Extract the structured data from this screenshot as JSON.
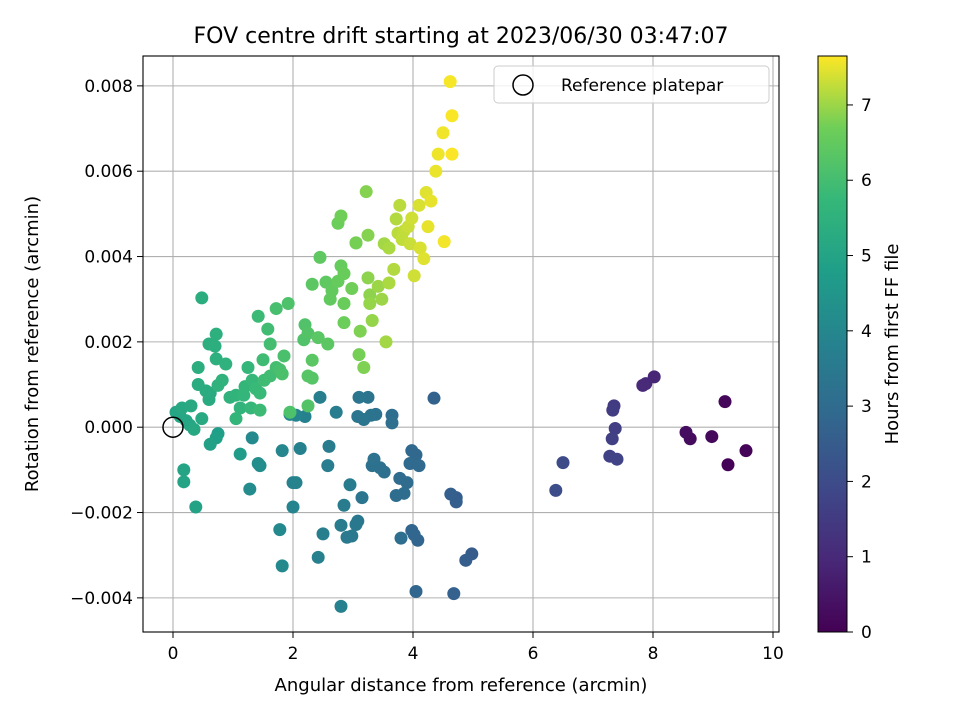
{
  "chart_data": {
    "type": "scatter",
    "title": "FOV centre drift starting at 2023/06/30 03:47:07",
    "xlabel": "Angular distance from reference (arcmin)",
    "ylabel": "Rotation from reference (arcmin)",
    "colorbar_label": "Hours from first FF file",
    "colormap": "viridis",
    "xlim": [
      -0.5,
      10.1
    ],
    "ylim": [
      -0.0048,
      0.0087
    ],
    "clim": [
      0,
      7.65
    ],
    "grid": true,
    "legend_position": "top-right",
    "x_ticks": [
      "0",
      "2",
      "4",
      "6",
      "8",
      "10"
    ],
    "y_ticks": [
      "−0.004",
      "−0.002",
      "0.000",
      "0.002",
      "0.004",
      "0.006",
      "0.008"
    ],
    "colorbar_ticks": [
      "0",
      "1",
      "2",
      "3",
      "4",
      "5",
      "6",
      "7"
    ],
    "reference": {
      "name": "Reference platepar",
      "x": 0,
      "y": 0
    },
    "points": [
      {
        "x": 9.25,
        "y": -0.00088,
        "h": 0.05
      },
      {
        "x": 9.55,
        "y": -0.00055,
        "h": 0.1
      },
      {
        "x": 9.2,
        "y": 0.0006,
        "h": 0.15
      },
      {
        "x": 8.98,
        "y": -0.00022,
        "h": 0.2
      },
      {
        "x": 8.62,
        "y": -0.00027,
        "h": 0.25
      },
      {
        "x": 8.55,
        "y": -0.00012,
        "h": 0.3
      },
      {
        "x": 8.02,
        "y": 0.00118,
        "h": 0.9
      },
      {
        "x": 7.88,
        "y": 0.00102,
        "h": 0.95
      },
      {
        "x": 7.83,
        "y": 0.00098,
        "h": 1.0
      },
      {
        "x": 7.35,
        "y": 0.0005,
        "h": 1.5
      },
      {
        "x": 7.33,
        "y": 0.0004,
        "h": 1.55
      },
      {
        "x": 7.37,
        "y": -3e-05,
        "h": 1.6
      },
      {
        "x": 7.32,
        "y": -0.00027,
        "h": 1.65
      },
      {
        "x": 7.28,
        "y": -0.00068,
        "h": 1.7
      },
      {
        "x": 7.4,
        "y": -0.00075,
        "h": 1.75
      },
      {
        "x": 6.5,
        "y": -0.00083,
        "h": 2.0
      },
      {
        "x": 6.38,
        "y": -0.00148,
        "h": 2.05
      },
      {
        "x": 4.98,
        "y": -0.00297,
        "h": 2.5
      },
      {
        "x": 4.88,
        "y": -0.00312,
        "h": 2.55
      },
      {
        "x": 4.72,
        "y": -0.00165,
        "h": 2.55
      },
      {
        "x": 4.72,
        "y": -0.00175,
        "h": 2.6
      },
      {
        "x": 4.63,
        "y": -0.00157,
        "h": 2.6
      },
      {
        "x": 4.68,
        "y": -0.0039,
        "h": 2.65
      },
      {
        "x": 4.35,
        "y": 0.00068,
        "h": 2.7
      },
      {
        "x": 4.08,
        "y": -0.00265,
        "h": 2.8
      },
      {
        "x": 3.98,
        "y": -0.00242,
        "h": 2.8
      },
      {
        "x": 4.02,
        "y": -0.00252,
        "h": 2.85
      },
      {
        "x": 4.05,
        "y": -0.00385,
        "h": 2.85
      },
      {
        "x": 3.98,
        "y": -0.00055,
        "h": 2.9
      },
      {
        "x": 4.05,
        "y": -0.00065,
        "h": 2.9
      },
      {
        "x": 3.95,
        "y": -0.00085,
        "h": 2.95
      },
      {
        "x": 4.1,
        "y": -0.0009,
        "h": 2.95
      },
      {
        "x": 3.9,
        "y": -0.0013,
        "h": 3.0
      },
      {
        "x": 3.78,
        "y": -0.0012,
        "h": 3.0
      },
      {
        "x": 3.85,
        "y": -0.00155,
        "h": 3.05
      },
      {
        "x": 3.72,
        "y": -0.0016,
        "h": 3.05
      },
      {
        "x": 3.8,
        "y": -0.0026,
        "h": 3.1
      },
      {
        "x": 3.65,
        "y": 0.00028,
        "h": 3.1
      },
      {
        "x": 3.65,
        "y": 0.0001,
        "h": 3.15
      },
      {
        "x": 3.52,
        "y": -0.00105,
        "h": 3.15
      },
      {
        "x": 3.45,
        "y": -0.00095,
        "h": 3.2
      },
      {
        "x": 3.32,
        "y": -0.0009,
        "h": 3.2
      },
      {
        "x": 3.35,
        "y": -0.00075,
        "h": 3.25
      },
      {
        "x": 3.38,
        "y": 0.0003,
        "h": 3.25
      },
      {
        "x": 3.3,
        "y": 0.00028,
        "h": 3.3
      },
      {
        "x": 3.25,
        "y": 0.0007,
        "h": 3.3
      },
      {
        "x": 3.1,
        "y": 0.0007,
        "h": 3.35
      },
      {
        "x": 3.18,
        "y": 0.00018,
        "h": 3.35
      },
      {
        "x": 3.08,
        "y": 0.00025,
        "h": 3.4
      },
      {
        "x": 3.15,
        "y": -0.00165,
        "h": 3.4
      },
      {
        "x": 3.08,
        "y": -0.0022,
        "h": 3.45
      },
      {
        "x": 3.05,
        "y": -0.00228,
        "h": 3.45
      },
      {
        "x": 2.98,
        "y": -0.00255,
        "h": 3.5
      },
      {
        "x": 2.9,
        "y": -0.00258,
        "h": 3.5
      },
      {
        "x": 2.85,
        "y": -0.00183,
        "h": 3.55
      },
      {
        "x": 2.8,
        "y": -0.0023,
        "h": 3.55
      },
      {
        "x": 2.95,
        "y": -0.00135,
        "h": 3.6
      },
      {
        "x": 2.6,
        "y": -0.00045,
        "h": 3.6
      },
      {
        "x": 2.58,
        "y": -0.0009,
        "h": 3.65
      },
      {
        "x": 2.72,
        "y": 0.00035,
        "h": 3.65
      },
      {
        "x": 2.45,
        "y": 0.0007,
        "h": 3.7
      },
      {
        "x": 2.5,
        "y": -0.0025,
        "h": 3.7
      },
      {
        "x": 2.42,
        "y": -0.00305,
        "h": 3.75
      },
      {
        "x": 2.8,
        "y": -0.0042,
        "h": 3.75
      },
      {
        "x": 2.2,
        "y": 0.00025,
        "h": 3.8
      },
      {
        "x": 2.12,
        "y": -0.0005,
        "h": 3.8
      },
      {
        "x": 2.0,
        "y": -0.0013,
        "h": 3.85
      },
      {
        "x": 2.05,
        "y": -0.0013,
        "h": 3.85
      },
      {
        "x": 2.0,
        "y": -0.00187,
        "h": 3.9
      },
      {
        "x": 2.05,
        "y": 0.00028,
        "h": 3.9
      },
      {
        "x": 1.95,
        "y": 0.0003,
        "h": 4.0
      },
      {
        "x": 1.82,
        "y": -0.00055,
        "h": 4.0
      },
      {
        "x": 1.78,
        "y": -0.0024,
        "h": 4.05
      },
      {
        "x": 1.82,
        "y": -0.00325,
        "h": 4.05
      },
      {
        "x": 1.32,
        "y": -0.00025,
        "h": 4.1
      },
      {
        "x": 1.28,
        "y": -0.00145,
        "h": 4.15
      },
      {
        "x": 1.45,
        "y": -0.0009,
        "h": 4.2
      },
      {
        "x": 1.42,
        "y": -0.00085,
        "h": 4.25
      },
      {
        "x": 1.12,
        "y": -0.00063,
        "h": 4.7
      },
      {
        "x": 0.75,
        "y": -0.00015,
        "h": 4.8
      },
      {
        "x": 0.72,
        "y": -0.00025,
        "h": 4.85
      },
      {
        "x": 0.62,
        "y": -0.0004,
        "h": 4.9
      },
      {
        "x": 0.38,
        "y": -0.00187,
        "h": 4.95
      },
      {
        "x": 0.18,
        "y": -0.001,
        "h": 5.0
      },
      {
        "x": 0.18,
        "y": -0.00128,
        "h": 5.0
      },
      {
        "x": 0.05,
        "y": 0.00035,
        "h": 5.05
      },
      {
        "x": 0.12,
        "y": 0.00025,
        "h": 5.05
      },
      {
        "x": 0.22,
        "y": 0.00015,
        "h": 5.1
      },
      {
        "x": 0.28,
        "y": 5e-05,
        "h": 5.1
      },
      {
        "x": 0.35,
        "y": -5e-05,
        "h": 5.15
      },
      {
        "x": 0.15,
        "y": 0.00045,
        "h": 5.15
      },
      {
        "x": 0.3,
        "y": 0.0005,
        "h": 5.2
      },
      {
        "x": 0.48,
        "y": 0.0002,
        "h": 5.2
      },
      {
        "x": 0.62,
        "y": 0.0008,
        "h": 5.25
      },
      {
        "x": 0.6,
        "y": 0.00065,
        "h": 5.25
      },
      {
        "x": 0.55,
        "y": 0.00085,
        "h": 5.3
      },
      {
        "x": 0.42,
        "y": 0.001,
        "h": 5.3
      },
      {
        "x": 0.42,
        "y": 0.0014,
        "h": 5.35
      },
      {
        "x": 0.48,
        "y": 0.00303,
        "h": 5.35
      },
      {
        "x": 0.6,
        "y": 0.00195,
        "h": 5.4
      },
      {
        "x": 0.7,
        "y": 0.0019,
        "h": 5.4
      },
      {
        "x": 0.72,
        "y": 0.00218,
        "h": 5.45
      },
      {
        "x": 0.72,
        "y": 0.0016,
        "h": 5.45
      },
      {
        "x": 0.88,
        "y": 0.00148,
        "h": 5.5
      },
      {
        "x": 0.75,
        "y": 0.00098,
        "h": 5.5
      },
      {
        "x": 0.82,
        "y": 0.0011,
        "h": 5.55
      },
      {
        "x": 0.95,
        "y": 0.0007,
        "h": 5.55
      },
      {
        "x": 1.05,
        "y": 0.00075,
        "h": 5.6
      },
      {
        "x": 1.12,
        "y": 0.00045,
        "h": 5.6
      },
      {
        "x": 1.05,
        "y": 0.0002,
        "h": 5.65
      },
      {
        "x": 1.2,
        "y": 0.00095,
        "h": 5.65
      },
      {
        "x": 1.18,
        "y": 0.00075,
        "h": 5.7
      },
      {
        "x": 1.25,
        "y": 0.0014,
        "h": 5.7
      },
      {
        "x": 1.3,
        "y": 0.00045,
        "h": 5.75
      },
      {
        "x": 1.32,
        "y": 0.0011,
        "h": 5.75
      },
      {
        "x": 1.38,
        "y": 0.0009,
        "h": 5.8
      },
      {
        "x": 1.45,
        "y": 0.0008,
        "h": 5.8
      },
      {
        "x": 1.45,
        "y": 0.0004,
        "h": 5.85
      },
      {
        "x": 1.42,
        "y": 0.0026,
        "h": 5.85
      },
      {
        "x": 1.5,
        "y": 0.00158,
        "h": 5.9
      },
      {
        "x": 1.52,
        "y": 0.0011,
        "h": 5.9
      },
      {
        "x": 1.62,
        "y": 0.0012,
        "h": 5.95
      },
      {
        "x": 1.58,
        "y": 0.0023,
        "h": 5.95
      },
      {
        "x": 1.62,
        "y": 0.00195,
        "h": 6.0
      },
      {
        "x": 1.72,
        "y": 0.0014,
        "h": 6.0
      },
      {
        "x": 1.72,
        "y": 0.00278,
        "h": 6.05
      },
      {
        "x": 1.78,
        "y": 0.00135,
        "h": 6.05
      },
      {
        "x": 1.82,
        "y": 0.00125,
        "h": 6.1
      },
      {
        "x": 1.85,
        "y": 0.00167,
        "h": 6.1
      },
      {
        "x": 1.92,
        "y": 0.0029,
        "h": 6.15
      },
      {
        "x": 1.95,
        "y": 0.00035,
        "h": 6.15
      },
      {
        "x": 2.18,
        "y": 0.00205,
        "h": 6.2
      },
      {
        "x": 2.2,
        "y": 0.0024,
        "h": 6.2
      },
      {
        "x": 2.25,
        "y": 0.0022,
        "h": 6.25
      },
      {
        "x": 2.25,
        "y": 0.0005,
        "h": 6.25
      },
      {
        "x": 2.25,
        "y": 0.0012,
        "h": 6.3
      },
      {
        "x": 2.32,
        "y": 0.00115,
        "h": 6.3
      },
      {
        "x": 2.32,
        "y": 0.00157,
        "h": 6.35
      },
      {
        "x": 2.42,
        "y": 0.0021,
        "h": 6.35
      },
      {
        "x": 2.58,
        "y": 0.00195,
        "h": 6.4
      },
      {
        "x": 2.32,
        "y": 0.00335,
        "h": 6.4
      },
      {
        "x": 2.45,
        "y": 0.00398,
        "h": 6.45
      },
      {
        "x": 2.55,
        "y": 0.0034,
        "h": 6.45
      },
      {
        "x": 2.62,
        "y": 0.003,
        "h": 6.5
      },
      {
        "x": 2.65,
        "y": 0.0032,
        "h": 6.5
      },
      {
        "x": 2.75,
        "y": 0.00342,
        "h": 6.55
      },
      {
        "x": 2.8,
        "y": 0.00378,
        "h": 6.55
      },
      {
        "x": 2.85,
        "y": 0.0036,
        "h": 6.6
      },
      {
        "x": 2.85,
        "y": 0.0029,
        "h": 6.6
      },
      {
        "x": 2.85,
        "y": 0.00245,
        "h": 6.65
      },
      {
        "x": 2.75,
        "y": 0.00478,
        "h": 6.65
      },
      {
        "x": 2.8,
        "y": 0.00495,
        "h": 6.7
      },
      {
        "x": 2.98,
        "y": 0.00325,
        "h": 6.7
      },
      {
        "x": 3.05,
        "y": 0.00432,
        "h": 6.75
      },
      {
        "x": 3.1,
        "y": 0.0017,
        "h": 6.75
      },
      {
        "x": 3.12,
        "y": 0.00225,
        "h": 6.8
      },
      {
        "x": 3.18,
        "y": 0.0014,
        "h": 6.8
      },
      {
        "x": 3.22,
        "y": 0.00552,
        "h": 6.85
      },
      {
        "x": 3.25,
        "y": 0.0045,
        "h": 6.85
      },
      {
        "x": 3.25,
        "y": 0.0035,
        "h": 6.9
      },
      {
        "x": 3.28,
        "y": 0.0031,
        "h": 6.9
      },
      {
        "x": 3.28,
        "y": 0.0029,
        "h": 6.95
      },
      {
        "x": 3.32,
        "y": 0.0025,
        "h": 6.95
      },
      {
        "x": 3.42,
        "y": 0.0033,
        "h": 7.0
      },
      {
        "x": 3.48,
        "y": 0.003,
        "h": 7.0
      },
      {
        "x": 3.52,
        "y": 0.0043,
        "h": 7.05
      },
      {
        "x": 3.55,
        "y": 0.002,
        "h": 7.05
      },
      {
        "x": 3.6,
        "y": 0.0042,
        "h": 7.1
      },
      {
        "x": 3.6,
        "y": 0.00338,
        "h": 7.1
      },
      {
        "x": 3.68,
        "y": 0.0037,
        "h": 7.15
      },
      {
        "x": 3.72,
        "y": 0.00488,
        "h": 7.15
      },
      {
        "x": 3.75,
        "y": 0.00455,
        "h": 7.2
      },
      {
        "x": 3.78,
        "y": 0.0052,
        "h": 7.2
      },
      {
        "x": 3.82,
        "y": 0.0044,
        "h": 7.25
      },
      {
        "x": 3.85,
        "y": 0.0046,
        "h": 7.25
      },
      {
        "x": 3.92,
        "y": 0.0047,
        "h": 7.3
      },
      {
        "x": 3.95,
        "y": 0.0043,
        "h": 7.3
      },
      {
        "x": 3.98,
        "y": 0.0049,
        "h": 7.35
      },
      {
        "x": 4.02,
        "y": 0.00355,
        "h": 7.35
      },
      {
        "x": 4.1,
        "y": 0.0052,
        "h": 7.4
      },
      {
        "x": 4.12,
        "y": 0.0042,
        "h": 7.4
      },
      {
        "x": 4.18,
        "y": 0.00395,
        "h": 7.45
      },
      {
        "x": 4.22,
        "y": 0.0055,
        "h": 7.45
      },
      {
        "x": 4.25,
        "y": 0.0047,
        "h": 7.5
      },
      {
        "x": 4.3,
        "y": 0.0053,
        "h": 7.5
      },
      {
        "x": 4.38,
        "y": 0.006,
        "h": 7.52
      },
      {
        "x": 4.42,
        "y": 0.0064,
        "h": 7.55
      },
      {
        "x": 4.5,
        "y": 0.0069,
        "h": 7.57
      },
      {
        "x": 4.52,
        "y": 0.00435,
        "h": 7.58
      },
      {
        "x": 4.62,
        "y": 0.0081,
        "h": 7.6
      },
      {
        "x": 4.65,
        "y": 0.0073,
        "h": 7.62
      },
      {
        "x": 4.65,
        "y": 0.0064,
        "h": 7.63
      },
      {
        "x": 3.05,
        "y": 0.00432,
        "h": 6.75
      }
    ]
  }
}
